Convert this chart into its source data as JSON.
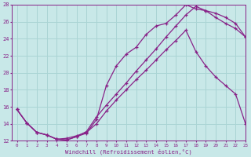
{
  "xlabel": "Windchill (Refroidissement éolien,°C)",
  "xlim": [
    -0.5,
    23
  ],
  "ylim": [
    12,
    28
  ],
  "xticks": [
    0,
    1,
    2,
    3,
    4,
    5,
    6,
    7,
    8,
    9,
    10,
    11,
    12,
    13,
    14,
    15,
    16,
    17,
    18,
    19,
    20,
    21,
    22,
    23
  ],
  "yticks": [
    12,
    14,
    16,
    18,
    20,
    22,
    24,
    26,
    28
  ],
  "bg_color": "#c8e8e8",
  "line_color": "#882288",
  "grid_color": "#aad4d4",
  "line1_x": [
    0,
    1,
    2,
    3,
    4,
    5,
    6,
    7,
    8,
    9,
    10,
    11,
    12,
    13,
    14,
    15,
    16,
    17,
    18,
    19,
    20,
    21,
    22,
    23
  ],
  "line1_y": [
    15.7,
    14.1,
    13.0,
    12.7,
    12.2,
    12.1,
    12.5,
    13.1,
    14.8,
    16.2,
    17.5,
    18.8,
    20.2,
    21.5,
    22.8,
    24.2,
    25.5,
    26.8,
    27.8,
    27.3,
    27.0,
    26.5,
    25.8,
    24.2
  ],
  "line2_x": [
    0,
    1,
    2,
    3,
    4,
    5,
    6,
    7,
    8,
    9,
    10,
    11,
    12,
    13,
    14,
    15,
    16,
    17,
    18,
    19,
    20,
    21,
    22,
    23
  ],
  "line2_y": [
    15.7,
    14.1,
    13.0,
    12.7,
    12.2,
    12.1,
    12.5,
    12.9,
    14.5,
    18.5,
    20.8,
    22.2,
    23.0,
    24.5,
    25.5,
    25.8,
    26.8,
    28.0,
    27.5,
    27.3,
    26.5,
    25.8,
    25.2,
    24.2
  ],
  "line3_x": [
    0,
    1,
    2,
    3,
    4,
    5,
    6,
    7,
    8,
    9,
    10,
    11,
    12,
    13,
    14,
    15,
    16,
    17,
    18,
    19,
    20,
    21,
    22,
    23
  ],
  "line3_y": [
    15.7,
    14.1,
    13.0,
    12.7,
    12.2,
    12.3,
    12.6,
    13.0,
    14.0,
    15.5,
    16.8,
    18.0,
    19.2,
    20.3,
    21.5,
    22.7,
    23.8,
    25.0,
    22.5,
    20.8,
    19.5,
    18.5,
    17.5,
    14.0
  ]
}
